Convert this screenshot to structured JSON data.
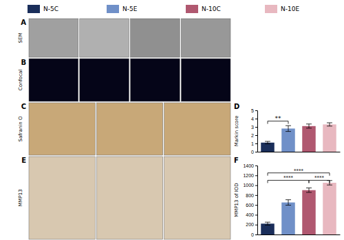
{
  "chart_data": [
    {
      "type": "image",
      "title": "A",
      "ylabel": "SEM",
      "colors": [
        "#a0a0a0",
        "#b0b0b0",
        "#909090",
        "#989898"
      ]
    },
    {
      "type": "image",
      "title": "B",
      "ylabel": "Confocal",
      "colors": [
        "#050518",
        "#050518",
        "#050518",
        "#050518"
      ]
    },
    {
      "type": "image",
      "title": "C",
      "ylabel": "Safranin O",
      "colors": [
        "#c8a878",
        "#c8a878",
        "#c8a878"
      ]
    },
    {
      "type": "bar",
      "title": "D",
      "ylabel": "Markin score",
      "categories": [
        "N-5C",
        "N-5E",
        "N-10C",
        "N-10E"
      ],
      "values": [
        1.1,
        2.8,
        3.1,
        3.3
      ],
      "errors": [
        0.15,
        0.35,
        0.25,
        0.2
      ],
      "colors": [
        "#1a2e5a",
        "#7090c8",
        "#b05870",
        "#e8b8c0"
      ],
      "ylim": [
        0,
        5
      ],
      "yticks": [
        0,
        1,
        2,
        3,
        4,
        5
      ],
      "tick_labels": "y",
      "legend": "top",
      "annotations": [
        {
          "text": "**",
          "x1": "N-5C",
          "x2": "N-5E",
          "y": 3.7
        }
      ]
    },
    {
      "type": "image",
      "title": "E",
      "ylabel": "MMP13",
      "colors": [
        "#d8c8b0",
        "#d8c8b0",
        "#d8c8b0"
      ]
    },
    {
      "type": "bar",
      "title": "F",
      "ylabel": "MMP13 of IOD",
      "categories": [
        "N-5C",
        "N-5E",
        "N-10C",
        "N-10E"
      ],
      "values": [
        220,
        650,
        900,
        1050
      ],
      "errors": [
        30,
        55,
        45,
        45
      ],
      "colors": [
        "#1a2e5a",
        "#7090c8",
        "#b05870",
        "#e8b8c0"
      ],
      "ylim": [
        0,
        1400
      ],
      "yticks": [
        0,
        200,
        400,
        600,
        800,
        1000,
        1200,
        1400
      ],
      "tick_labels": "y",
      "annotations": [
        {
          "text": "****",
          "x1": "N-5C",
          "x2": "N-10C",
          "y": 1100
        },
        {
          "text": "****",
          "x1": "N-5C",
          "x2": "N-10E",
          "y": 1250
        },
        {
          "text": "****",
          "x1": "N-10C",
          "x2": "N-10E",
          "y": 1100
        }
      ]
    }
  ]
}
